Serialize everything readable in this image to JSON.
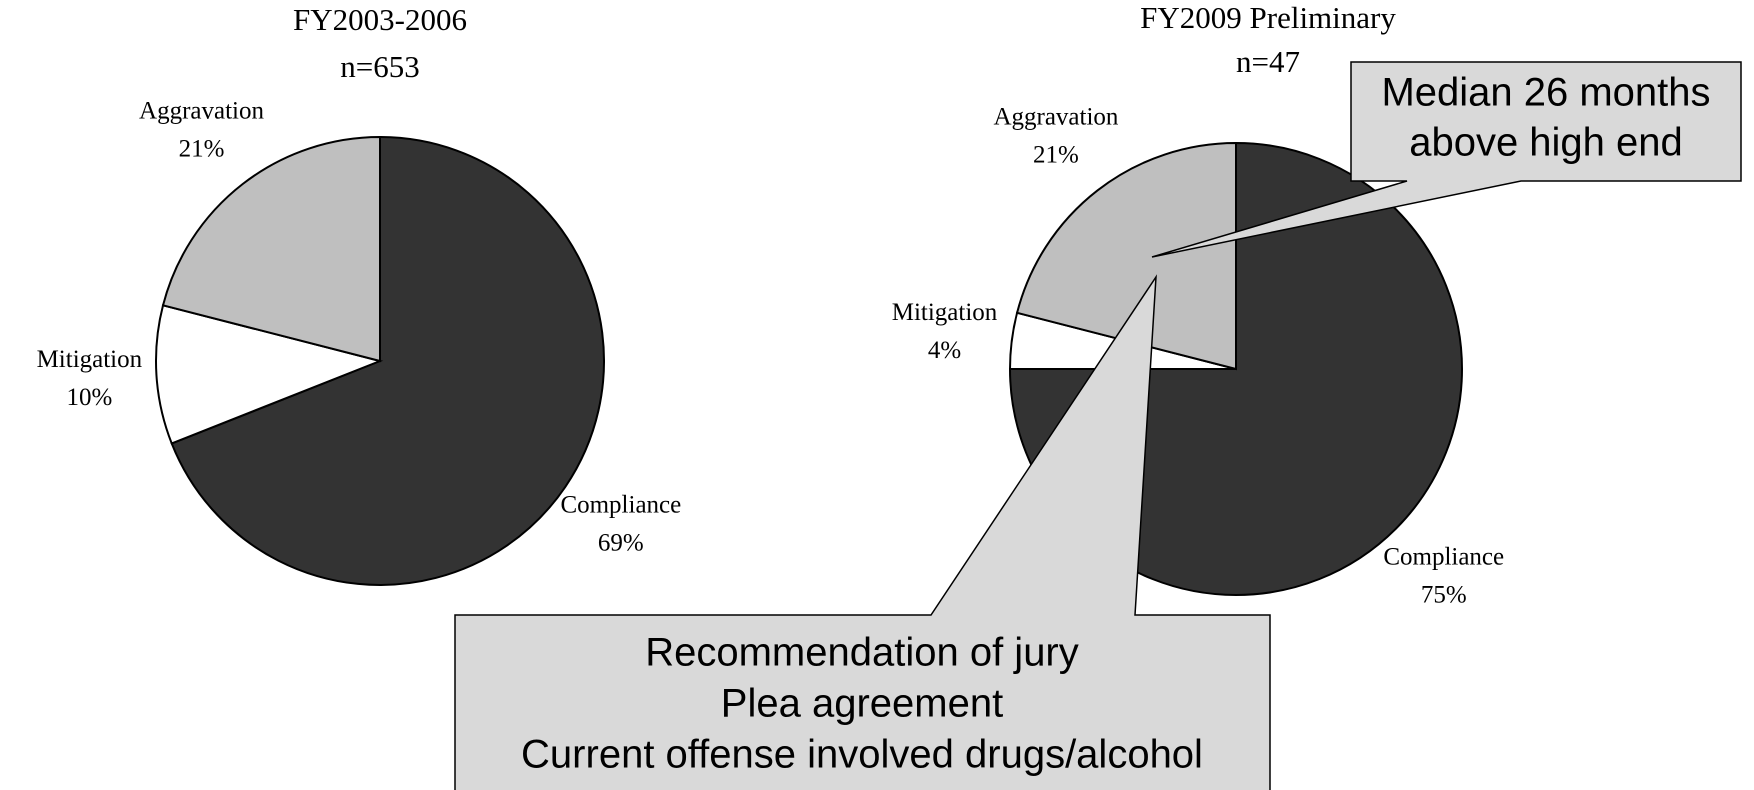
{
  "chart_data": [
    {
      "type": "pie",
      "title": "FY2003-2006",
      "subtitle": "n=653",
      "categories": [
        "Compliance",
        "Mitigation",
        "Aggravation"
      ],
      "values": [
        69,
        10,
        21
      ],
      "value_labels": [
        "69%",
        "10%",
        "21%"
      ],
      "colors": [
        "#333333",
        "#ffffff",
        "#bfbfbf"
      ]
    },
    {
      "type": "pie",
      "title": "FY2009 Preliminary",
      "subtitle": "n=47",
      "categories": [
        "Compliance",
        "Mitigation",
        "Aggravation"
      ],
      "values": [
        75,
        4,
        21
      ],
      "value_labels": [
        "75%",
        "4%",
        "21%"
      ],
      "colors": [
        "#333333",
        "#ffffff",
        "#bfbfbf"
      ],
      "annotations": [
        [
          "Median 26 months",
          "above high end"
        ],
        [
          "Recommendation of jury",
          "Plea agreement",
          "Current offense involved drugs/alcohol"
        ]
      ]
    }
  ]
}
